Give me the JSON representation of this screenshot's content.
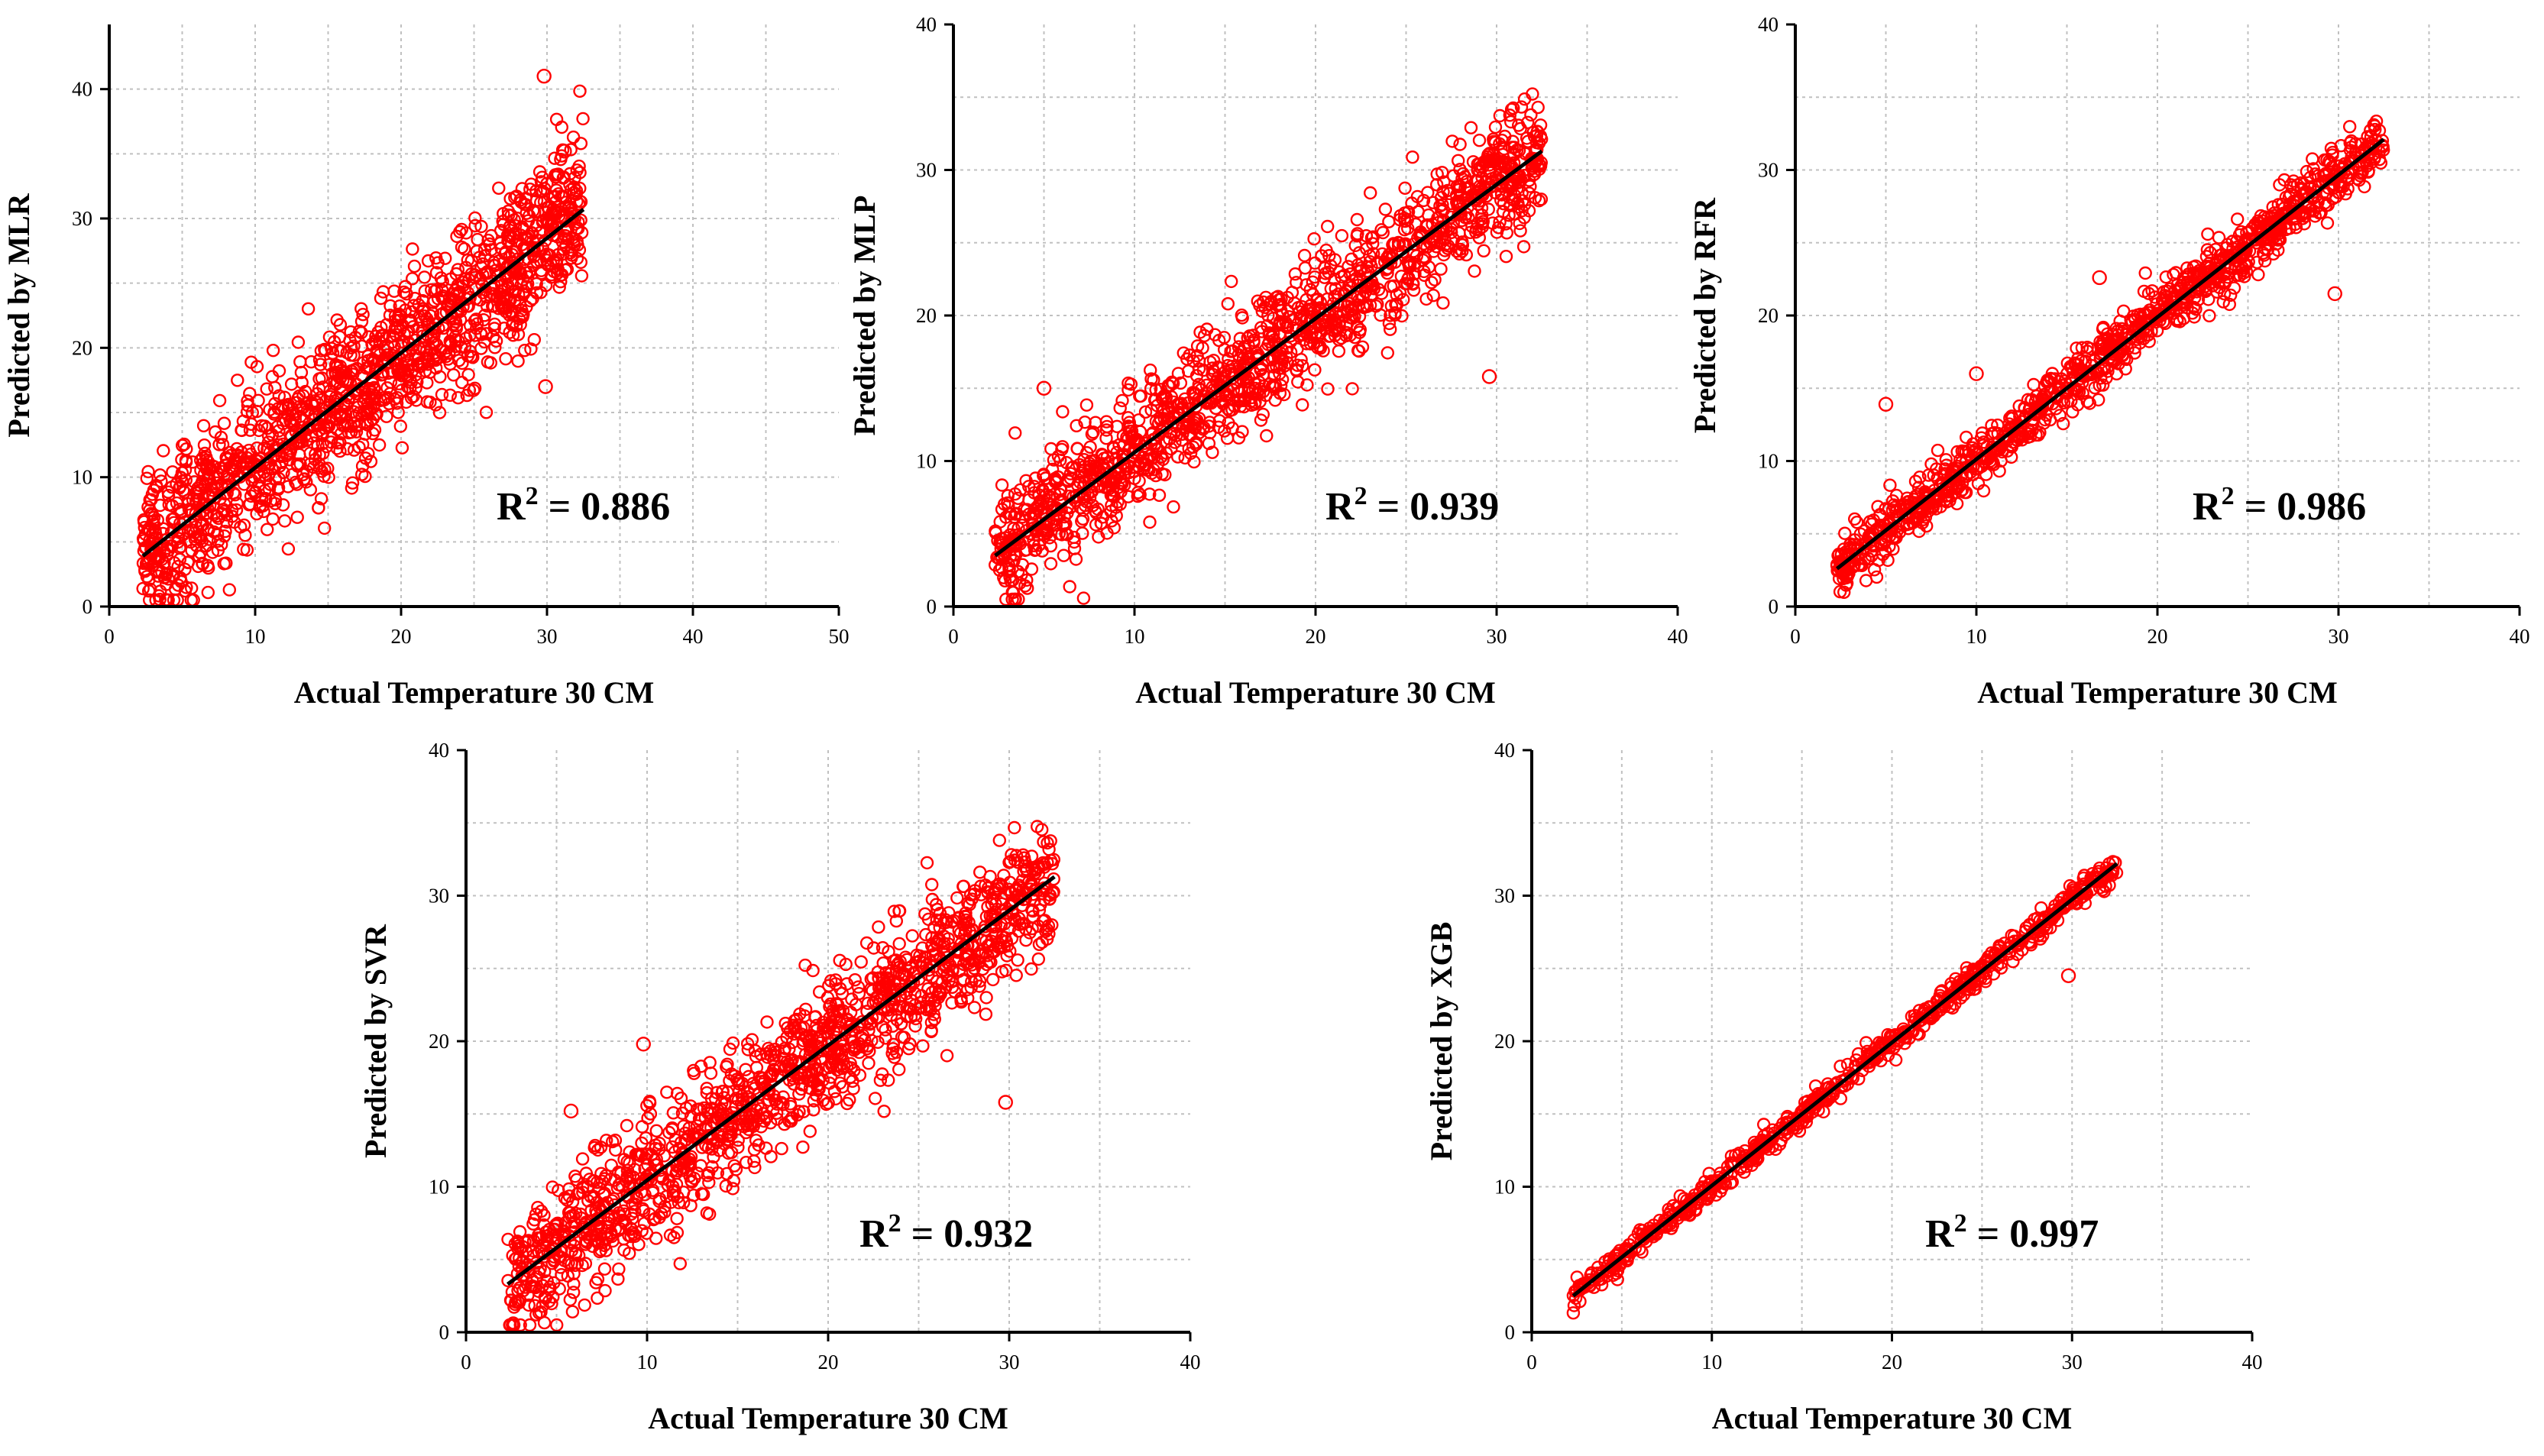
{
  "colors": {
    "marker": "#ff0000",
    "fit_line": "#000000",
    "grid": "#c0c0c0",
    "axis": "#000000"
  },
  "chart_data": [
    {
      "type": "scatter",
      "id": "mlr",
      "xlabel": "Actual Temperature 30 CM",
      "ylabel": "Predicted by MLR",
      "xlim": [
        0,
        50
      ],
      "ylim": [
        0,
        45
      ],
      "xticks": [
        0,
        10,
        20,
        30,
        40,
        50
      ],
      "yticks": [
        0,
        10,
        20,
        30,
        40
      ],
      "annotation": {
        "prefix": "R",
        "sup": "2",
        "suffix": " = 0.886"
      },
      "r2": 0.886,
      "fit_line": {
        "x": [
          2.3,
          32.5
        ],
        "y": [
          3.9,
          30.7
        ]
      },
      "scatter_model": {
        "x_range": [
          2.3,
          32.5
        ],
        "noise_sd": 3.0,
        "n_points": 1400
      },
      "outliers": [
        {
          "x": 29.8,
          "y": 41.0
        },
        {
          "x": 29.9,
          "y": 17.0
        },
        {
          "x": 31.2,
          "y": 35.2
        }
      ],
      "grid": true
    },
    {
      "type": "scatter",
      "id": "mlp",
      "xlabel": "Actual Temperature 30 CM",
      "ylabel": "Predicted by MLP",
      "xlim": [
        0,
        40
      ],
      "ylim": [
        0,
        40
      ],
      "xticks": [
        0,
        10,
        20,
        30,
        40
      ],
      "yticks": [
        0,
        10,
        20,
        30,
        40
      ],
      "annotation": {
        "prefix": "R",
        "sup": "2",
        "suffix": " = 0.939"
      },
      "r2": 0.939,
      "fit_line": {
        "x": [
          2.3,
          32.5
        ],
        "y": [
          3.5,
          31.3
        ]
      },
      "scatter_model": {
        "x_range": [
          2.3,
          32.5
        ],
        "noise_sd": 2.1,
        "n_points": 1400
      },
      "outliers": [
        {
          "x": 5.0,
          "y": 15.0
        },
        {
          "x": 29.6,
          "y": 15.8
        }
      ],
      "grid": true
    },
    {
      "type": "scatter",
      "id": "rfr",
      "xlabel": "Actual Temperature 30 CM",
      "ylabel": "Predicted by RFR",
      "xlim": [
        0,
        40
      ],
      "ylim": [
        0,
        40
      ],
      "xticks": [
        0,
        10,
        20,
        30,
        40
      ],
      "yticks": [
        0,
        10,
        20,
        30,
        40
      ],
      "annotation": {
        "prefix": "R",
        "sup": "2",
        "suffix": " = 0.986"
      },
      "r2": 0.986,
      "fit_line": {
        "x": [
          2.3,
          32.5
        ],
        "y": [
          2.6,
          32.1
        ]
      },
      "scatter_model": {
        "x_range": [
          2.3,
          32.5
        ],
        "noise_sd": 1.0,
        "n_points": 1100
      },
      "outliers": [
        {
          "x": 5.0,
          "y": 13.9
        },
        {
          "x": 29.8,
          "y": 21.5
        },
        {
          "x": 16.8,
          "y": 22.6
        },
        {
          "x": 10.0,
          "y": 16.0
        }
      ],
      "grid": true
    },
    {
      "type": "scatter",
      "id": "svr",
      "xlabel": "Actual Temperature 30 CM",
      "ylabel": "Predicted by SVR",
      "xlim": [
        0,
        40
      ],
      "ylim": [
        0,
        40
      ],
      "xticks": [
        0,
        10,
        20,
        30,
        40
      ],
      "yticks": [
        0,
        10,
        20,
        30,
        40
      ],
      "annotation": {
        "prefix": "R",
        "sup": "2",
        "suffix": " = 0.932"
      },
      "r2": 0.932,
      "fit_line": {
        "x": [
          2.3,
          32.5
        ],
        "y": [
          3.3,
          31.3
        ]
      },
      "scatter_model": {
        "x_range": [
          2.3,
          32.5
        ],
        "noise_sd": 2.3,
        "n_points": 1400
      },
      "outliers": [
        {
          "x": 29.8,
          "y": 15.8
        },
        {
          "x": 9.8,
          "y": 19.8
        },
        {
          "x": 5.8,
          "y": 15.2
        }
      ],
      "grid": true
    },
    {
      "type": "scatter",
      "id": "xgb",
      "xlabel": "Actual Temperature 30 CM",
      "ylabel": "Predicted by XGB",
      "xlim": [
        0,
        40
      ],
      "ylim": [
        0,
        40
      ],
      "xticks": [
        0,
        10,
        20,
        30,
        40
      ],
      "yticks": [
        0,
        10,
        20,
        30,
        40
      ],
      "annotation": {
        "prefix": "R",
        "sup": "2",
        "suffix": " = 0.997"
      },
      "r2": 0.997,
      "fit_line": {
        "x": [
          2.3,
          32.5
        ],
        "y": [
          2.5,
          32.2
        ]
      },
      "scatter_model": {
        "x_range": [
          2.3,
          32.5
        ],
        "noise_sd": 0.45,
        "n_points": 700
      },
      "outliers": [
        {
          "x": 29.8,
          "y": 24.5
        }
      ],
      "grid": true
    }
  ]
}
